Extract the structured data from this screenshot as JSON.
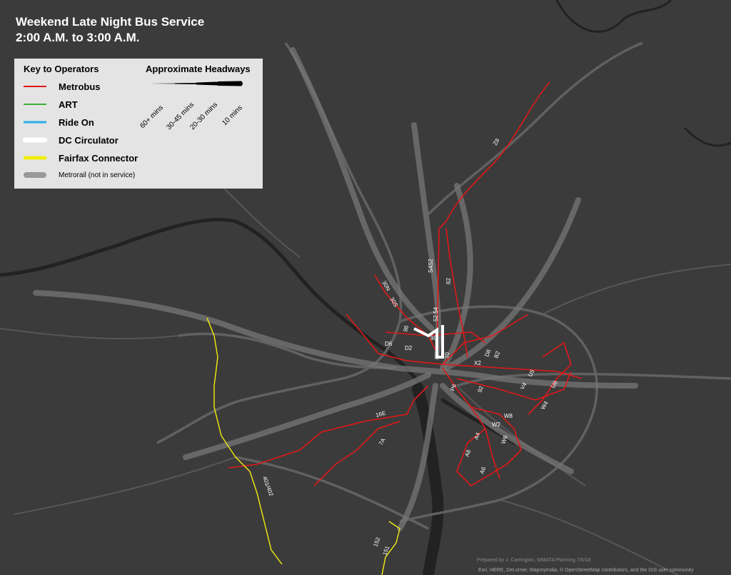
{
  "header": {
    "title": "Weekend Late Night Bus Service",
    "subtitle": "2:00 A.M. to 3:00 A.M."
  },
  "legend": {
    "title": "Key to Operators",
    "items": [
      "Metrobus",
      "ART",
      "Ride On",
      "DC Circulator",
      "Fairfax Connector",
      "Metrorail (not in service)"
    ]
  },
  "headways": {
    "title": "Approximate Headways",
    "labels": [
      "60+ mins",
      "30-45 mins",
      "20-30 mins",
      "10 mins"
    ]
  },
  "routes": [
    "Z8",
    "S4S2",
    "62",
    "52 54",
    "30N",
    "30S",
    "96",
    "90",
    "D6",
    "D2",
    "70",
    "D8",
    "B2",
    "X2",
    "P6",
    "92",
    "V4",
    "U5",
    "U8",
    "W4",
    "W8",
    "W2",
    "A4",
    "W6",
    "A8",
    "A6",
    "16E",
    "7A",
    "401/402",
    "152",
    "151"
  ],
  "credits": {
    "prepared": "Prepared by J. Carrington, WMATA Planning 7/6/18",
    "sources": "Esri, HERE, DeLorme, MapmyIndia, © OpenStreetMap contributors, and the GIS user community"
  }
}
